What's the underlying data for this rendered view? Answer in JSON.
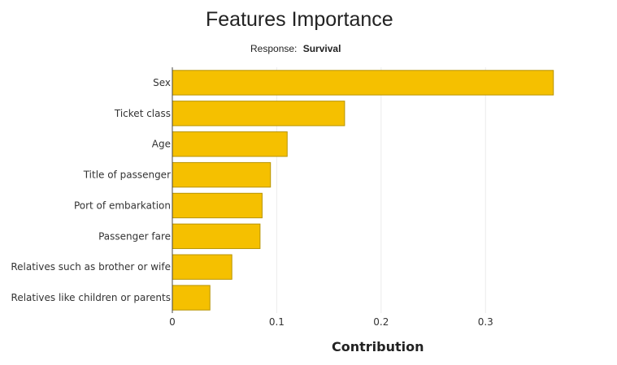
{
  "chart_data": {
    "type": "bar",
    "orientation": "horizontal",
    "title": "Features Importance",
    "subtitle_label": "Response:",
    "subtitle_value": "Survival",
    "xlabel": "Contribution",
    "ylabel": "",
    "categories": [
      "Sex",
      "Ticket class",
      "Age",
      "Title of passenger",
      "Port of embarkation",
      "Passenger fare",
      "Relatives such as brother or wife",
      "Relatives like children or parents"
    ],
    "values": [
      0.365,
      0.165,
      0.11,
      0.094,
      0.086,
      0.084,
      0.057,
      0.036
    ],
    "xlim": [
      0,
      0.38
    ],
    "xticks": [
      0,
      0.1,
      0.2,
      0.3
    ],
    "xtick_labels": [
      "0",
      "0.1",
      "0.2",
      "0.3"
    ],
    "grid": "vertical",
    "legend": "none",
    "colors": {
      "bar_fill": "#f5c000",
      "bar_stroke": "#b89400",
      "grid": "#ececec",
      "axis": "#444444"
    }
  }
}
